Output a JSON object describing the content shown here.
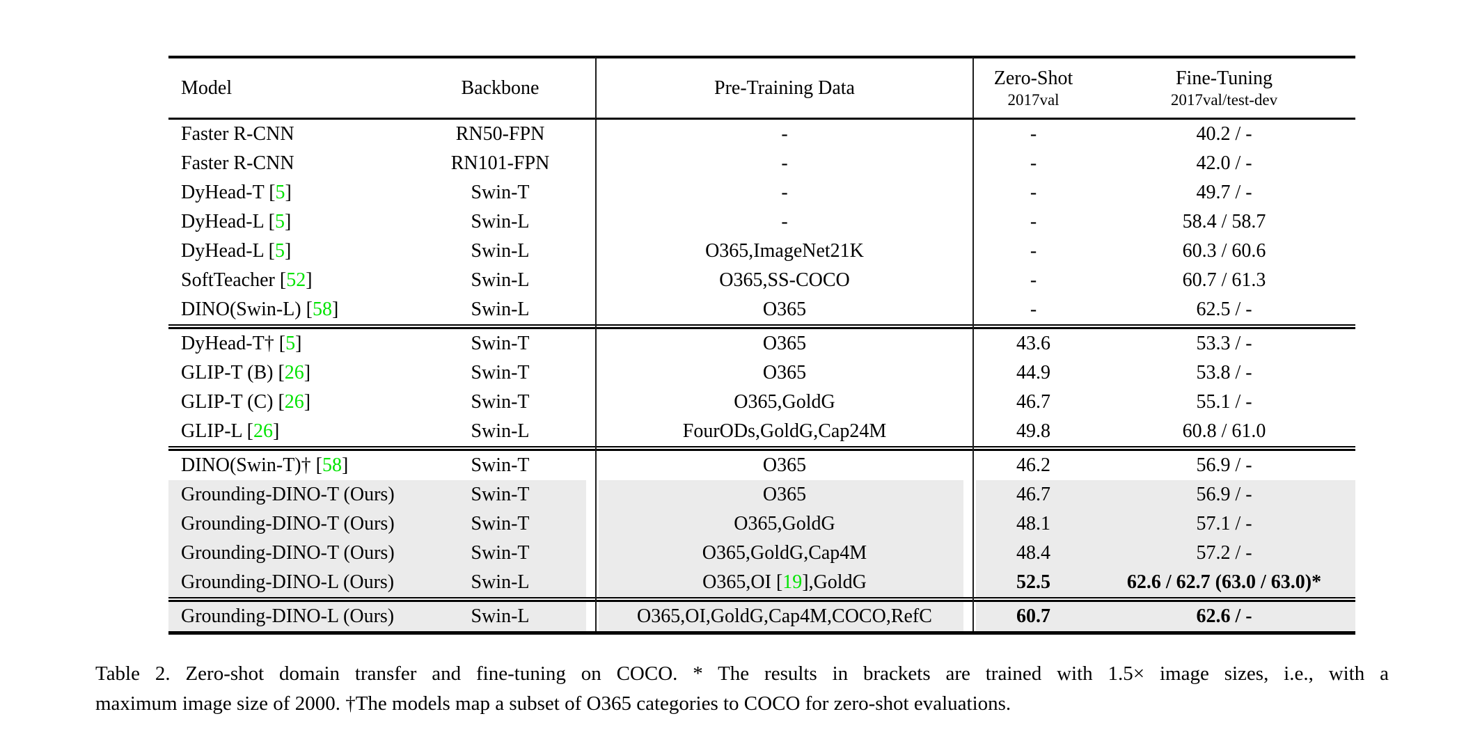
{
  "colors": {
    "citation_green": "#00e300",
    "highlight_gray": "#ebebeb",
    "rule_black": "#000000",
    "divider_gray": "#1c1c1c"
  },
  "table": {
    "headers": {
      "model": "Model",
      "backbone": "Backbone",
      "pretraining": "Pre-Training Data",
      "zeroshot_main": "Zero-Shot",
      "zeroshot_sub": "2017val",
      "finetuning_main": "Fine-Tuning",
      "finetuning_sub": "2017val/test-dev"
    },
    "groups": [
      {
        "rows": [
          {
            "model": {
              "before": "Faster R-CNN",
              "cite": "",
              "after": ""
            },
            "backbone": "RN50-FPN",
            "pretrain": {
              "before": "-",
              "cite": "",
              "after": ""
            },
            "zeroshot": "-",
            "finetune": "40.2 / -",
            "highlight": false,
            "bold": false
          },
          {
            "model": {
              "before": "Faster R-CNN",
              "cite": "",
              "after": ""
            },
            "backbone": "RN101-FPN",
            "pretrain": {
              "before": "-",
              "cite": "",
              "after": ""
            },
            "zeroshot": "-",
            "finetune": "42.0 / -",
            "highlight": false,
            "bold": false
          },
          {
            "model": {
              "before": "DyHead-T [",
              "cite": "5",
              "after": "]"
            },
            "backbone": "Swin-T",
            "pretrain": {
              "before": "-",
              "cite": "",
              "after": ""
            },
            "zeroshot": "-",
            "finetune": "49.7 / -",
            "highlight": false,
            "bold": false
          },
          {
            "model": {
              "before": "DyHead-L [",
              "cite": "5",
              "after": "]"
            },
            "backbone": "Swin-L",
            "pretrain": {
              "before": "-",
              "cite": "",
              "after": ""
            },
            "zeroshot": "-",
            "finetune": "58.4 / 58.7",
            "highlight": false,
            "bold": false
          },
          {
            "model": {
              "before": "DyHead-L [",
              "cite": "5",
              "after": "]"
            },
            "backbone": "Swin-L",
            "pretrain": {
              "before": "O365,ImageNet21K",
              "cite": "",
              "after": ""
            },
            "zeroshot": "-",
            "finetune": "60.3 / 60.6",
            "highlight": false,
            "bold": false
          },
          {
            "model": {
              "before": "SoftTeacher [",
              "cite": "52",
              "after": "]"
            },
            "backbone": "Swin-L",
            "pretrain": {
              "before": "O365,SS-COCO",
              "cite": "",
              "after": ""
            },
            "zeroshot": "-",
            "finetune": "60.7 / 61.3",
            "highlight": false,
            "bold": false
          },
          {
            "model": {
              "before": "DINO(Swin-L) [",
              "cite": "58",
              "after": "]"
            },
            "backbone": "Swin-L",
            "pretrain": {
              "before": "O365",
              "cite": "",
              "after": ""
            },
            "zeroshot": "-",
            "finetune": "62.5 / -",
            "highlight": false,
            "bold": false
          }
        ]
      },
      {
        "rows": [
          {
            "model": {
              "before": "DyHead-T† [",
              "cite": "5",
              "after": "]"
            },
            "backbone": "Swin-T",
            "pretrain": {
              "before": "O365",
              "cite": "",
              "after": ""
            },
            "zeroshot": "43.6",
            "finetune": "53.3 / -",
            "highlight": false,
            "bold": false
          },
          {
            "model": {
              "before": "GLIP-T (B) [",
              "cite": "26",
              "after": "]"
            },
            "backbone": "Swin-T",
            "pretrain": {
              "before": "O365",
              "cite": "",
              "after": ""
            },
            "zeroshot": "44.9",
            "finetune": "53.8 / -",
            "highlight": false,
            "bold": false
          },
          {
            "model": {
              "before": "GLIP-T (C) [",
              "cite": "26",
              "after": "]"
            },
            "backbone": "Swin-T",
            "pretrain": {
              "before": "O365,GoldG",
              "cite": "",
              "after": ""
            },
            "zeroshot": "46.7",
            "finetune": "55.1 / -",
            "highlight": false,
            "bold": false
          },
          {
            "model": {
              "before": "GLIP-L [",
              "cite": "26",
              "after": "]"
            },
            "backbone": "Swin-L",
            "pretrain": {
              "before": "FourODs,GoldG,Cap24M",
              "cite": "",
              "after": ""
            },
            "zeroshot": "49.8",
            "finetune": "60.8 / 61.0",
            "highlight": false,
            "bold": false
          }
        ]
      },
      {
        "rows": [
          {
            "model": {
              "before": "DINO(Swin-T)† [",
              "cite": "58",
              "after": "]"
            },
            "backbone": "Swin-T",
            "pretrain": {
              "before": "O365",
              "cite": "",
              "after": ""
            },
            "zeroshot": "46.2",
            "finetune": "56.9 / -",
            "highlight": false,
            "bold": false
          },
          {
            "model": {
              "before": "Grounding-DINO-T (Ours)",
              "cite": "",
              "after": ""
            },
            "backbone": "Swin-T",
            "pretrain": {
              "before": "O365",
              "cite": "",
              "after": ""
            },
            "zeroshot": "46.7",
            "finetune": "56.9 / -",
            "highlight": true,
            "bold": false
          },
          {
            "model": {
              "before": "Grounding-DINO-T (Ours)",
              "cite": "",
              "after": ""
            },
            "backbone": "Swin-T",
            "pretrain": {
              "before": "O365,GoldG",
              "cite": "",
              "after": ""
            },
            "zeroshot": "48.1",
            "finetune": "57.1 / -",
            "highlight": true,
            "bold": false
          },
          {
            "model": {
              "before": "Grounding-DINO-T (Ours)",
              "cite": "",
              "after": ""
            },
            "backbone": "Swin-T",
            "pretrain": {
              "before": "O365,GoldG,Cap4M",
              "cite": "",
              "after": ""
            },
            "zeroshot": "48.4",
            "finetune": "57.2 / -",
            "highlight": true,
            "bold": false
          },
          {
            "model": {
              "before": "Grounding-DINO-L (Ours)",
              "cite": "",
              "after": ""
            },
            "backbone": "Swin-L",
            "pretrain": {
              "before": "O365,OI [",
              "cite": "19",
              "after": "],GoldG"
            },
            "zeroshot": "52.5",
            "finetune": "62.6 / 62.7 (63.0 / 63.0)*",
            "highlight": true,
            "bold": true
          }
        ]
      },
      {
        "rows": [
          {
            "model": {
              "before": "Grounding-DINO-L (Ours)",
              "cite": "",
              "after": ""
            },
            "backbone": "Swin-L",
            "pretrain": {
              "before": "O365,OI,GoldG,Cap4M,COCO,RefC",
              "cite": "",
              "after": ""
            },
            "zeroshot": "60.7",
            "finetune": "62.6 / -",
            "highlight": true,
            "bold": true
          }
        ]
      }
    ]
  },
  "caption": {
    "line1": "Table 2.  Zero-shot domain transfer and fine-tuning on COCO. * The results in brackets are trained with 1.5× image sizes, i.e., with a",
    "line2": "maximum image size of 2000. †The models map a subset of O365 categories to COCO for zero-shot evaluations."
  }
}
